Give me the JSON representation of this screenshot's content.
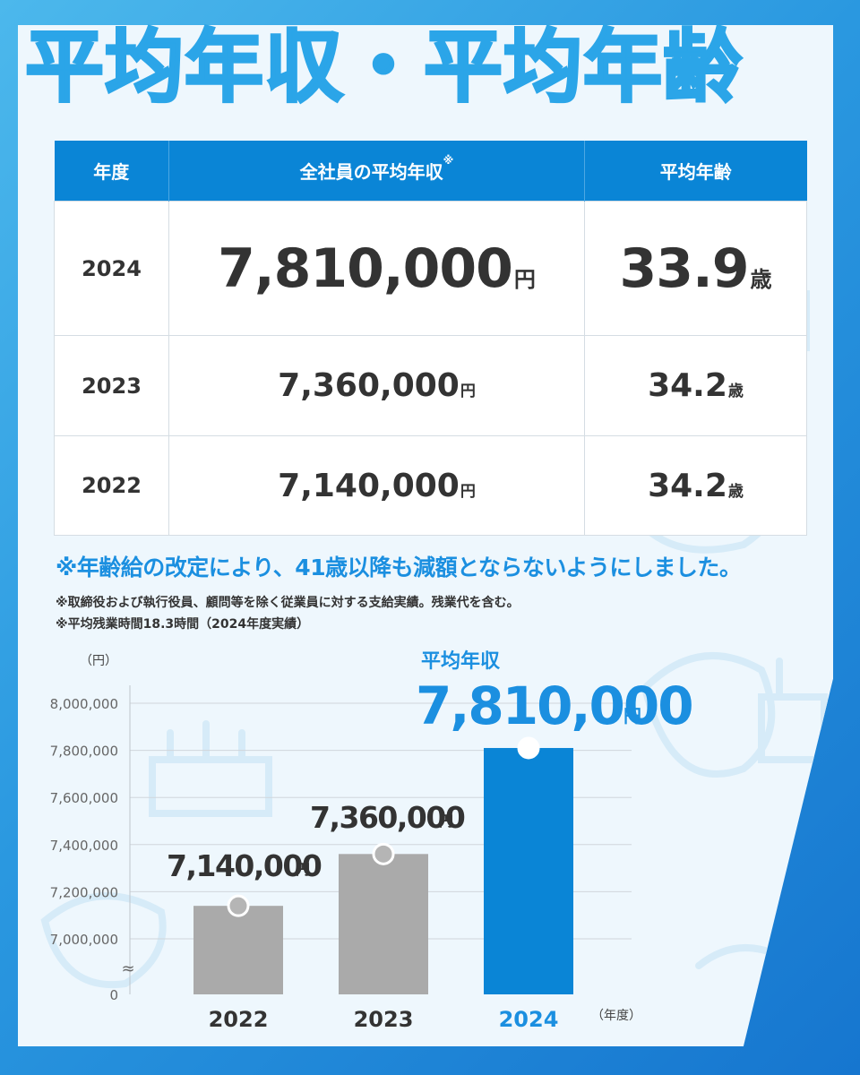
{
  "title": "平均年収・平均年齢",
  "table": {
    "headers": [
      "年度",
      "全社員の平均年収",
      "平均年齢"
    ],
    "header_sup": "※",
    "income_unit": "円",
    "age_unit": "歳",
    "rows": [
      {
        "year": "2024",
        "income": "7,810,000",
        "age": "33.9"
      },
      {
        "year": "2023",
        "income": "7,360,000",
        "age": "34.2"
      },
      {
        "year": "2022",
        "income": "7,140,000",
        "age": "34.2"
      }
    ]
  },
  "notes": {
    "main": "※年齢給の改定により、41歳以降も減額とならないようにしました。",
    "line1": "※取締役および執行役員、顧問等を除く従業員に対する支給実績。残業代を含む。",
    "line2": "※平均残業時間18.3時間（2024年度実績）"
  },
  "chart_data": {
    "type": "bar",
    "categories": [
      "2022",
      "2023",
      "2024"
    ],
    "values": [
      7140000,
      7360000,
      7810000
    ],
    "value_labels": [
      "7,140,000",
      "7,360,000",
      "7,810,000"
    ],
    "value_unit": "円",
    "ylabel": "（円）",
    "xlabel": "（年度）",
    "yticks": [
      "8,000,000",
      "7,800,000",
      "7,600,000",
      "7,400,000",
      "7,200,000",
      "7,000,000",
      "0"
    ],
    "ylim": [
      7000000,
      8000000
    ],
    "axis_break": "≈",
    "highlight_label": "平均年収",
    "bar_colors": [
      "#aaaaaa",
      "#aaaaaa",
      "#0a85d6"
    ],
    "highlight_color": "#1b8fe0",
    "grid": true
  },
  "colors": {
    "accent": "#0a85d6",
    "title": "#2ba5e8",
    "bar_gray": "#aaaaaa"
  }
}
